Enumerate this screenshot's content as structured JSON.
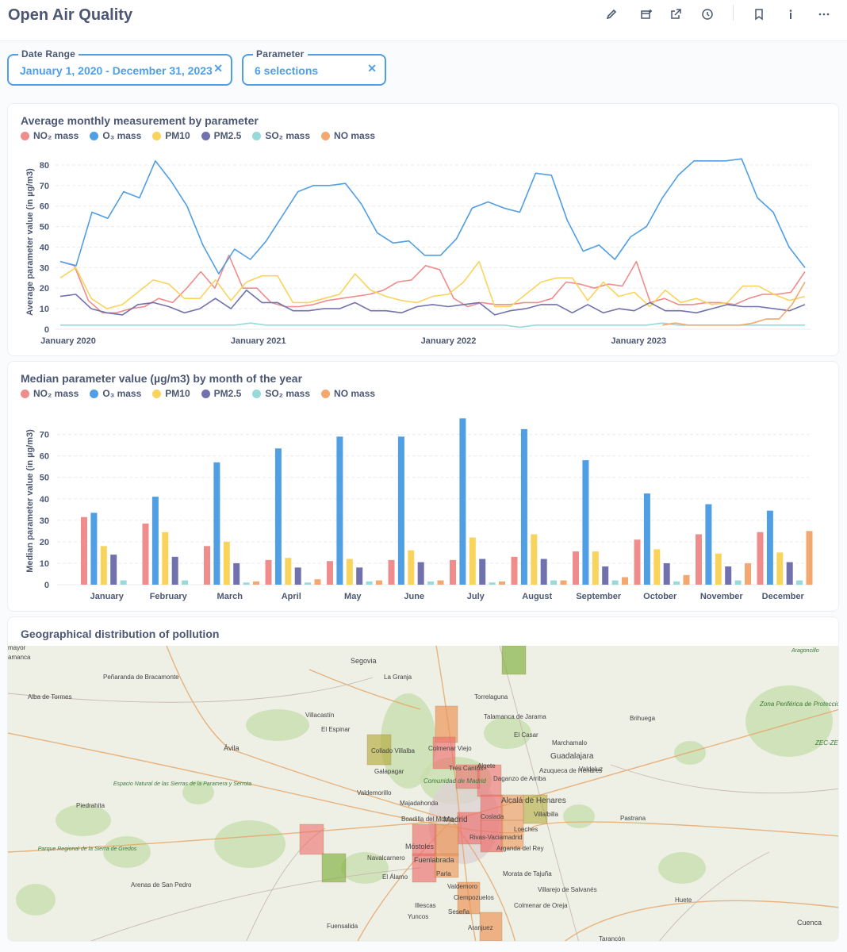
{
  "header": {
    "title": "Open Air Quality",
    "icons": [
      "pencil-icon",
      "add-to-dashboard-icon",
      "share-icon",
      "history-icon",
      "bookmark-icon",
      "info-icon",
      "more-icon"
    ]
  },
  "filters": [
    {
      "label": "Date Range",
      "value": "January 1, 2020 - December 31, 2023"
    },
    {
      "label": "Parameter",
      "value": "6 selections"
    }
  ],
  "colors": {
    "accent": "#509ee3",
    "no2": "#ef8c8c",
    "o3": "#509ee3",
    "pm10": "#f9d45c",
    "pm25": "#7172ad",
    "so2": "#98d9d9",
    "no": "#f2a86f"
  },
  "legend": [
    {
      "name": "NO₂ mass",
      "color": "#ef8c8c"
    },
    {
      "name": "O₃ mass",
      "color": "#509ee3"
    },
    {
      "name": "PM10",
      "color": "#f9d45c"
    },
    {
      "name": "PM2.5",
      "color": "#7172ad"
    },
    {
      "name": "SO₂ mass",
      "color": "#98d9d9"
    },
    {
      "name": "NO mass",
      "color": "#f2a86f"
    }
  ],
  "line_card": {
    "title": "Average monthly measurement by parameter"
  },
  "bar_card": {
    "title": "Median parameter value (µg/m3) by month of the year"
  },
  "map_card": {
    "title": "Geographical distribution of pollution",
    "places": [
      "Segovia",
      "Peñaranda de Bracamonte",
      "Alba de Tormes",
      "La Granja",
      "Torrelaguna",
      "Villacastín",
      "El Espinar",
      "Talamanca de Jarama",
      "El Casar",
      "Ávila",
      "Collado Villalba",
      "Colmenar Viejo",
      "Marchamalo",
      "Guadalajara",
      "Brihuega",
      "Galapagar",
      "Tres Cantos",
      "Algete",
      "Azuqueca de Henares",
      "Valdeluz",
      "Daganzo de Arriba",
      "Piedrahita",
      "Valdemorillo",
      "Comunidad de Madrid",
      "Majadahonda",
      "Alcalá de Henares",
      "Villalbilla",
      "Boadilla del Monte",
      "Madrid",
      "Coslada",
      "Pastrana",
      "Loeches",
      "Rivas-Vaciamadrid",
      "Móstoles",
      "Navalcarnero",
      "Fuenlabrada",
      "Arganda del Rey",
      "Parla",
      "El Álamo",
      "Morata de Tajuña",
      "Arenas de San Pedro",
      "Valdemoro",
      "Ciempozuelos",
      "Villarejo de Salvanés",
      "Illescas",
      "Yuncos",
      "Seseña",
      "Colmenar de Oreja",
      "Huete",
      "Fuensalida",
      "Aranjuez",
      "Tarancón",
      "Cuenca",
      "Aragoncillo",
      "Espacio Natural de las Sierras de la Paramera y Serrota",
      "Parque Regional de la Sierra de Gredos",
      "Zona Periférica de Protección del Parque Natural del Alto Tajo",
      "ZEC-ZE Alto Ta",
      "mayor",
      "amanca"
    ]
  },
  "chart_data": [
    {
      "type": "line",
      "title": "Average monthly measurement by parameter",
      "xlabel": "",
      "ylabel": "Average parameter value (in µg/m3)",
      "ylim": [
        0,
        85
      ],
      "yticks": [
        0,
        10,
        20,
        30,
        40,
        50,
        60,
        70,
        80
      ],
      "x_tick_labels": [
        "January 2020",
        "January 2021",
        "January 2022",
        "January 2023"
      ],
      "x_start": "2020-01",
      "series": [
        {
          "name": "NO₂ mass",
          "color": "#ef8c8c",
          "values": [
            33,
            31,
            14,
            8,
            8,
            10,
            11,
            15,
            13,
            20,
            28,
            20,
            36,
            20,
            20,
            13,
            11,
            11,
            12,
            14,
            15,
            16,
            17,
            19,
            23,
            24,
            31,
            29,
            15,
            11,
            13,
            12,
            12,
            13,
            13,
            15,
            23,
            22,
            20,
            22,
            21,
            33,
            13,
            15,
            12,
            12,
            13,
            13,
            12,
            15,
            17,
            17,
            18,
            28
          ]
        },
        {
          "name": "O₃ mass",
          "color": "#509ee3",
          "values": [
            33,
            31,
            57,
            54,
            67,
            64,
            82,
            72,
            60,
            41,
            27,
            39,
            34,
            43,
            55,
            67,
            70,
            70,
            71,
            61,
            47,
            42,
            43,
            36,
            36,
            44,
            59,
            62,
            59,
            57,
            76,
            75,
            53,
            38,
            41,
            34,
            45,
            50,
            64,
            75,
            82,
            82,
            82,
            83,
            64,
            57,
            40,
            30
          ]
        },
        {
          "name": "PM10",
          "color": "#f9d45c",
          "values": [
            25,
            30,
            15,
            10,
            12,
            18,
            24,
            22,
            15,
            15,
            24,
            14,
            23,
            26,
            26,
            13,
            13,
            15,
            17,
            27,
            19,
            16,
            14,
            13,
            16,
            17,
            23,
            33,
            11,
            11,
            17,
            23,
            25,
            25,
            14,
            23,
            16,
            18,
            11,
            19,
            13,
            15,
            12,
            13,
            21,
            21,
            17,
            14,
            16
          ]
        },
        {
          "name": "PM2.5",
          "color": "#7172ad",
          "values": [
            16,
            17,
            10,
            8,
            7,
            12,
            13,
            11,
            8,
            10,
            15,
            10,
            19,
            13,
            13,
            9,
            9,
            10,
            10,
            13,
            9,
            9,
            8,
            11,
            12,
            11,
            12,
            13,
            7,
            9,
            10,
            12,
            12,
            8,
            12,
            8,
            10,
            9,
            13,
            9,
            9,
            8,
            10,
            12,
            11,
            11,
            10,
            9,
            12
          ]
        },
        {
          "name": "SO₂ mass",
          "color": "#98d9d9",
          "values": [
            2,
            2,
            2,
            2,
            2,
            2,
            2,
            2,
            2,
            2,
            2,
            2,
            3,
            2,
            2,
            2,
            2,
            2,
            2,
            2,
            2,
            2,
            2,
            2,
            2,
            2,
            2,
            2,
            2,
            1,
            2,
            2,
            2,
            2,
            2,
            2,
            2,
            2,
            3,
            2,
            2,
            2,
            2,
            2,
            2,
            2,
            2,
            2
          ]
        },
        {
          "name": "NO mass",
          "color": "#f2a86f",
          "start_index": 38,
          "values": [
            2,
            3,
            2,
            2,
            2,
            2,
            2,
            3,
            5,
            5,
            12,
            23
          ]
        }
      ]
    },
    {
      "type": "bar",
      "title": "Median parameter value (µg/m3) by month of the year",
      "xlabel": "",
      "ylabel": "Median parameter value (in µg/m3)",
      "ylim": [
        0,
        78
      ],
      "yticks": [
        0,
        10,
        20,
        30,
        40,
        50,
        60,
        70
      ],
      "categories": [
        "January",
        "February",
        "March",
        "April",
        "May",
        "June",
        "July",
        "August",
        "September",
        "October",
        "November",
        "December"
      ],
      "series": [
        {
          "name": "NO₂ mass",
          "color": "#ef8c8c",
          "values": [
            31.5,
            28.5,
            18,
            11.5,
            11,
            11.5,
            11.5,
            13,
            15.5,
            21,
            23.5,
            24.5
          ]
        },
        {
          "name": "O₃ mass",
          "color": "#509ee3",
          "values": [
            33.5,
            41,
            57,
            63.5,
            69,
            69,
            77.5,
            72.5,
            58,
            42.5,
            37.5,
            34.5
          ]
        },
        {
          "name": "PM10",
          "color": "#f9d45c",
          "values": [
            18,
            24.5,
            20,
            12.5,
            12,
            16,
            22,
            23.5,
            15.5,
            16.5,
            14.5,
            15
          ]
        },
        {
          "name": "PM2.5",
          "color": "#7172ad",
          "values": [
            14,
            13,
            10,
            8,
            8,
            10.5,
            12,
            12,
            8.5,
            10,
            8.5,
            10.5
          ]
        },
        {
          "name": "SO₂ mass",
          "color": "#98d9d9",
          "values": [
            2,
            2,
            1,
            1,
            1.5,
            1.5,
            1,
            2,
            2,
            1.5,
            2,
            2
          ]
        },
        {
          "name": "NO mass",
          "color": "#f2a86f",
          "values": [
            0,
            0,
            1.5,
            2.5,
            2,
            2,
            1.5,
            2,
            3.5,
            4.5,
            10,
            25
          ]
        }
      ]
    }
  ]
}
